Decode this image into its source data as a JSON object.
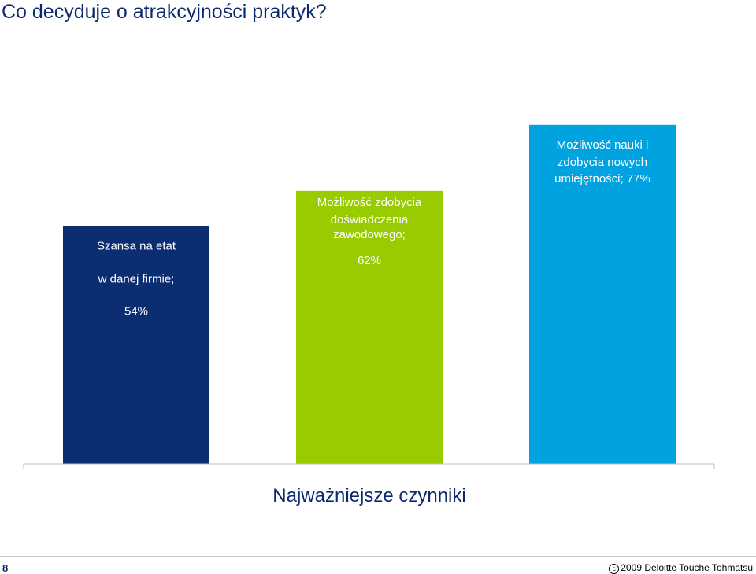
{
  "page": {
    "title": "Co decyduje o atrakcyjności praktyk?",
    "page_number": "8",
    "copyright": "2009 Deloitte Touche Tohmatsu",
    "copyright_icon": "copyright-icon"
  },
  "chart_data": {
    "type": "bar",
    "title": "",
    "xlabel": "Najważniejsze czynniki",
    "ylabel": "",
    "ylim": [
      0,
      100
    ],
    "grid": false,
    "legend": "none",
    "categories": [
      "Szansa na etat w danej firmie",
      "Możliwość zdobycia doświadczenia zawodowego",
      "Możliwość nauki i zdobycia nowych umiejętności"
    ],
    "values": [
      54,
      62,
      77
    ],
    "colors": [
      "#0b2d72",
      "#99cc00",
      "#00a3e0"
    ],
    "data_labels": [
      [
        "Szansa na etat",
        "w danej firmie;",
        "54%"
      ],
      [
        "Możliwość zdobycia",
        "doświadczenia",
        "zawodowego;",
        "62%"
      ],
      [
        "Możliwość nauki i",
        "zdobycia nowych",
        "umiejętności; 77%"
      ]
    ]
  }
}
